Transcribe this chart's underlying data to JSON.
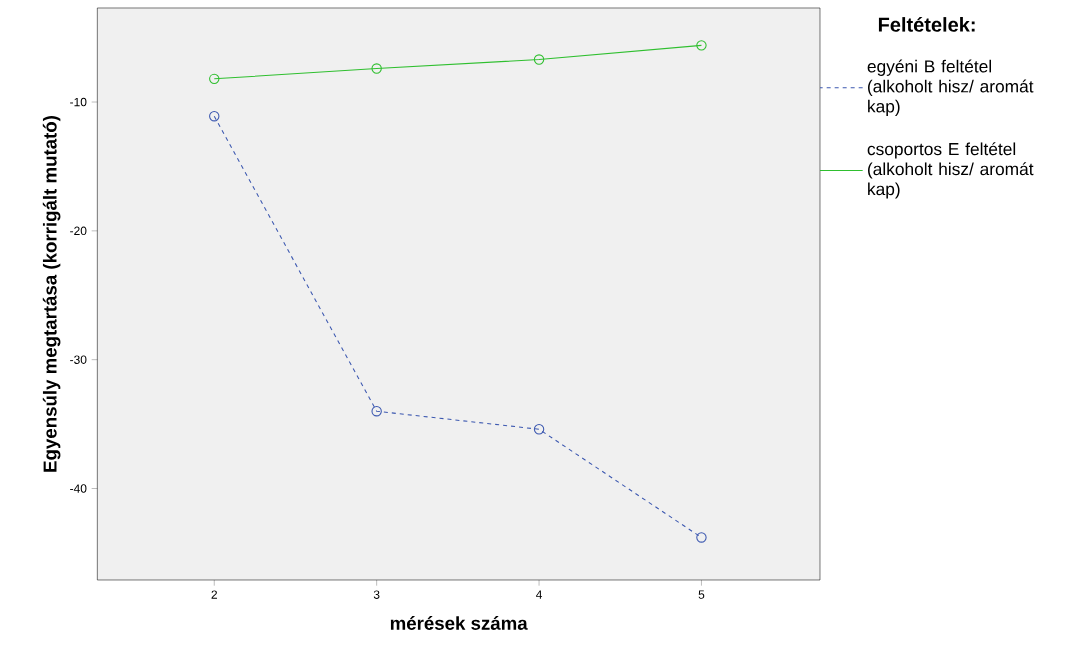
{
  "chart_data": {
    "type": "line",
    "xlabel": "mérések száma",
    "ylabel": "Egyensúly megtartása (korrigált mutató)",
    "legend_title": "Feltételek:",
    "legend": "top right",
    "x": [
      2,
      3,
      4,
      5
    ],
    "xlim": [
      1.28,
      5.73
    ],
    "xticks": [
      2,
      3,
      4,
      5
    ],
    "ylim": [
      -47.1,
      -2.7
    ],
    "yticks": [
      -40,
      -30,
      -20,
      -10
    ],
    "marker": "circle",
    "grid": false,
    "series": [
      {
        "name": "egyéni B feltétel (alkoholt hisz/ aromát kap)",
        "color": "#3c58b0",
        "line_style": "dashed",
        "values": [
          -11.1,
          -34.0,
          -35.4,
          -43.8
        ]
      },
      {
        "name": "csoportos E feltétel (alkoholt hisz/ aromát kap)",
        "color": "#2fbf2f",
        "line_style": "solid",
        "values": [
          -8.2,
          -7.4,
          -6.7,
          -5.6
        ]
      }
    ]
  }
}
